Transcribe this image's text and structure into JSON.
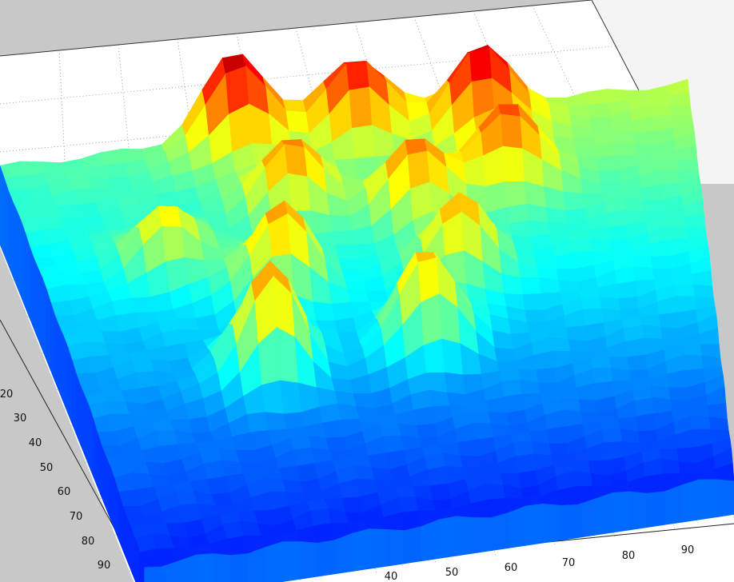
{
  "chart_data": {
    "type": "surface",
    "colormap": "jet",
    "grid": true,
    "axes": {
      "y_ticks": [
        "20",
        "30",
        "40",
        "50",
        "60",
        "70",
        "80",
        "90"
      ],
      "x_ticks": [
        "40",
        "50",
        "60",
        "70",
        "80",
        "90"
      ]
    },
    "surface": {
      "x_range": [
        1,
        100
      ],
      "y_range": [
        1,
        100
      ],
      "z_range": [
        0,
        1
      ],
      "base_level": 0.45,
      "peaks": [
        {
          "x": 35,
          "y": 2,
          "z": 0.98
        },
        {
          "x": 52,
          "y": 3,
          "z": 0.92
        },
        {
          "x": 70,
          "y": 6,
          "z": 0.97
        },
        {
          "x": 40,
          "y": 20,
          "z": 0.78
        },
        {
          "x": 58,
          "y": 25,
          "z": 0.8
        },
        {
          "x": 72,
          "y": 20,
          "z": 0.84
        },
        {
          "x": 35,
          "y": 40,
          "z": 0.76
        },
        {
          "x": 62,
          "y": 42,
          "z": 0.74
        },
        {
          "x": 30,
          "y": 60,
          "z": 0.77
        },
        {
          "x": 55,
          "y": 58,
          "z": 0.72
        },
        {
          "x": 20,
          "y": 30,
          "z": 0.66
        }
      ]
    }
  }
}
